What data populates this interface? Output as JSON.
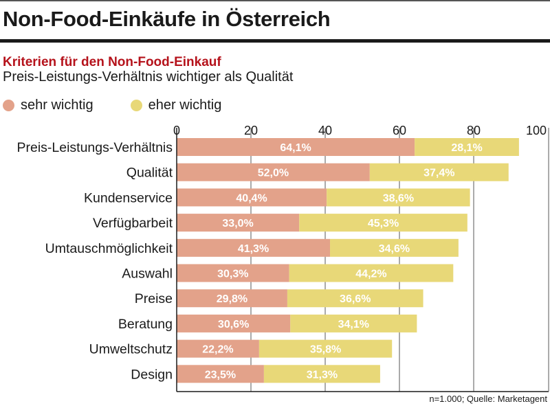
{
  "header": {
    "title": "Non-Food-Einkäufe in Österreich",
    "subtitle": "Kriterien für den Non-Food-Einkauf",
    "description": "Preis-Leistungs-Verhältnis wichtiger als Qualität"
  },
  "colors": {
    "sehr_wichtig": "#e3a28a",
    "eher_wichtig": "#e8d878",
    "title_accent": "#b5121b"
  },
  "legend": [
    {
      "label": "sehr wichtig",
      "color": "#e3a28a"
    },
    {
      "label": "eher wichtig",
      "color": "#e8d878"
    }
  ],
  "source": "n=1.000; Quelle: Marketagent",
  "chart_data": {
    "type": "bar",
    "orientation": "horizontal",
    "stacked": true,
    "title": "Kriterien für den Non-Food-Einkauf",
    "xlabel": "",
    "ylabel": "",
    "xlim": [
      0,
      100
    ],
    "xticks": [
      0,
      20,
      40,
      60,
      80,
      100
    ],
    "grid": true,
    "legend_position": "top-left",
    "categories": [
      "Preis-Leistungs-Verhältnis",
      "Qualität",
      "Kundenservice",
      "Verfügbarbeit",
      "Umtauschmöglichkeit",
      "Auswahl",
      "Preise",
      "Beratung",
      "Umweltschutz",
      "Design"
    ],
    "series": [
      {
        "name": "sehr wichtig",
        "color": "#e3a28a",
        "values": [
          64.1,
          52.0,
          40.4,
          33.0,
          41.3,
          30.3,
          29.8,
          30.6,
          22.2,
          23.5
        ],
        "labels": [
          "64,1%",
          "52,0%",
          "40,4%",
          "33,0%",
          "41,3%",
          "30,3%",
          "29,8%",
          "30,6%",
          "22,2%",
          "23,5%"
        ]
      },
      {
        "name": "eher wichtig",
        "color": "#e8d878",
        "values": [
          28.1,
          37.4,
          38.6,
          45.3,
          34.6,
          44.2,
          36.6,
          34.1,
          35.8,
          31.3
        ],
        "labels": [
          "28,1%",
          "37,4%",
          "38,6%",
          "45,3%",
          "34,6%",
          "44,2%",
          "36,6%",
          "34,1%",
          "35,8%",
          "31,3%"
        ]
      }
    ]
  }
}
